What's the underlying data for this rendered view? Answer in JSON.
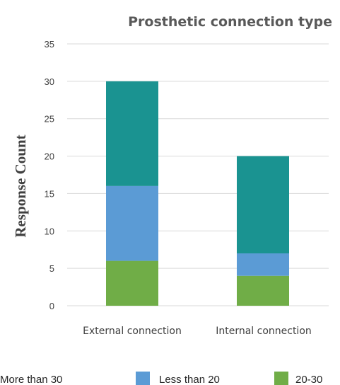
{
  "chart_data": {
    "type": "bar",
    "stacked": true,
    "title": "Prosthetic connection type",
    "xlabel": "",
    "ylabel": "Response Count",
    "ylim": [
      0,
      35
    ],
    "yticks": [
      0,
      5,
      10,
      15,
      20,
      25,
      30,
      35
    ],
    "grid": true,
    "legend_position": "bottom",
    "categories": [
      "External connection",
      "Internal connection"
    ],
    "series": [
      {
        "name": "20-30",
        "values": [
          6,
          4
        ],
        "color": "#70ad47"
      },
      {
        "name": "Less than 20",
        "values": [
          10,
          3
        ],
        "color": "#5b9bd5"
      },
      {
        "name": "More than 30",
        "values": [
          14,
          13
        ],
        "color": "#1a9391"
      }
    ],
    "legend_order": [
      "More than 30",
      "Less than 20",
      "20-30"
    ]
  }
}
